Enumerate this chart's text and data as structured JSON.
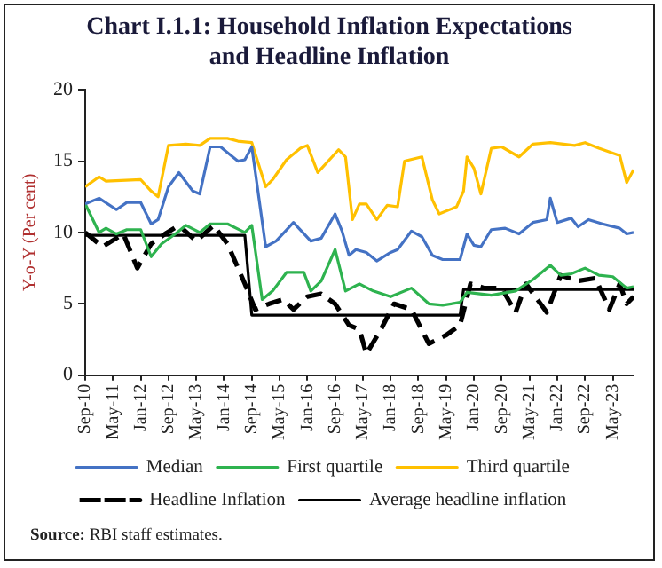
{
  "chart_data": {
    "type": "line",
    "title": "Chart I.1.1: Household Inflation Expectations and Headline Inflation",
    "ylabel": "Y-o-Y (Per cent)",
    "xlim": [
      "2010-09",
      "2023-11"
    ],
    "xticks": [
      {
        "value": "2010-09",
        "label": "Sep-10"
      },
      {
        "value": "2011-05",
        "label": "May-11"
      },
      {
        "value": "2012-01",
        "label": "Jan-12"
      },
      {
        "value": "2012-09",
        "label": "Sep-12"
      },
      {
        "value": "2013-05",
        "label": "May-13"
      },
      {
        "value": "2014-01",
        "label": "Jan-14"
      },
      {
        "value": "2014-09",
        "label": "Sep-14"
      },
      {
        "value": "2015-05",
        "label": "May-15"
      },
      {
        "value": "2016-01",
        "label": "Jan-16"
      },
      {
        "value": "2016-09",
        "label": "Sep-16"
      },
      {
        "value": "2017-05",
        "label": "May-17"
      },
      {
        "value": "2018-01",
        "label": "Jan-18"
      },
      {
        "value": "2018-09",
        "label": "Sep-18"
      },
      {
        "value": "2019-05",
        "label": "May-19"
      },
      {
        "value": "2020-01",
        "label": "Jan-20"
      },
      {
        "value": "2020-09",
        "label": "Sep-20"
      },
      {
        "value": "2021-05",
        "label": "May-21"
      },
      {
        "value": "2022-01",
        "label": "Jan-22"
      },
      {
        "value": "2022-09",
        "label": "Sep-22"
      },
      {
        "value": "2023-05",
        "label": "May-23"
      }
    ],
    "ylim": [
      0,
      20
    ],
    "yticks": [
      0,
      5,
      10,
      15,
      20
    ],
    "grid": false,
    "legend": "bottom",
    "marker": "none",
    "series": [
      {
        "name": "Median",
        "color": "#4472c4",
        "x": [
          "2010-09",
          "2011-01",
          "2011-06",
          "2011-09",
          "2012-01",
          "2012-04",
          "2012-06",
          "2012-09",
          "2012-12",
          "2013-04",
          "2013-06",
          "2013-09",
          "2013-12",
          "2014-05",
          "2014-07",
          "2014-09",
          "2015-01",
          "2015-04",
          "2015-09",
          "2016-02",
          "2016-05",
          "2016-09",
          "2016-11",
          "2017-01",
          "2017-03",
          "2017-06",
          "2017-09",
          "2018-01",
          "2018-03",
          "2018-07",
          "2018-10",
          "2019-01",
          "2019-04",
          "2019-09",
          "2019-11",
          "2020-01",
          "2020-03",
          "2020-06",
          "2020-10",
          "2021-02",
          "2021-06",
          "2021-10",
          "2021-11",
          "2022-01",
          "2022-05",
          "2022-07",
          "2022-10",
          "2023-02",
          "2023-07",
          "2023-09",
          "2023-11"
        ],
        "values": [
          12.0,
          12.4,
          11.6,
          12.1,
          12.1,
          10.6,
          10.9,
          13.2,
          14.2,
          12.9,
          12.7,
          16.0,
          16.0,
          15.0,
          15.1,
          16.0,
          9.0,
          9.4,
          10.7,
          9.4,
          9.6,
          11.3,
          10.1,
          8.4,
          8.8,
          8.6,
          8.0,
          8.6,
          8.8,
          10.1,
          9.7,
          8.4,
          8.1,
          8.1,
          9.9,
          9.1,
          9.0,
          10.2,
          10.3,
          9.9,
          10.7,
          10.9,
          12.4,
          10.7,
          11.0,
          10.4,
          10.9,
          10.6,
          10.3,
          9.9,
          10.0
        ]
      },
      {
        "name": "First quartile",
        "color": "#2eb34f",
        "x": [
          "2010-09",
          "2011-01",
          "2011-03",
          "2011-06",
          "2011-09",
          "2012-01",
          "2012-04",
          "2012-07",
          "2012-11",
          "2013-02",
          "2013-06",
          "2013-09",
          "2014-02",
          "2014-07",
          "2014-09",
          "2014-12",
          "2015-03",
          "2015-07",
          "2015-12",
          "2016-02",
          "2016-05",
          "2016-09",
          "2016-12",
          "2017-04",
          "2017-08",
          "2018-01",
          "2018-07",
          "2018-12",
          "2019-04",
          "2019-09",
          "2019-11",
          "2020-06",
          "2021-01",
          "2021-06",
          "2021-11",
          "2022-02",
          "2022-05",
          "2022-09",
          "2023-01",
          "2023-05",
          "2023-09",
          "2023-11"
        ],
        "values": [
          12.0,
          10.0,
          10.3,
          9.9,
          10.2,
          10.2,
          8.3,
          9.2,
          9.9,
          10.5,
          10.0,
          10.6,
          10.6,
          10.0,
          10.5,
          5.3,
          5.9,
          7.2,
          7.2,
          5.9,
          6.6,
          8.8,
          5.9,
          6.4,
          5.9,
          5.5,
          6.1,
          5.0,
          4.9,
          5.1,
          5.8,
          5.6,
          5.9,
          6.7,
          7.7,
          7.0,
          7.1,
          7.5,
          7.0,
          6.9,
          6.1,
          6.2
        ]
      },
      {
        "name": "Third quartile",
        "color": "#ffc000",
        "x": [
          "2010-09",
          "2011-01",
          "2011-03",
          "2012-01",
          "2012-04",
          "2012-06",
          "2012-09",
          "2013-02",
          "2013-06",
          "2013-09",
          "2014-02",
          "2014-05",
          "2014-09",
          "2015-01",
          "2015-03",
          "2015-07",
          "2015-11",
          "2016-01",
          "2016-04",
          "2016-10",
          "2016-12",
          "2017-02",
          "2017-04",
          "2017-06",
          "2017-09",
          "2017-12",
          "2018-03",
          "2018-05",
          "2018-10",
          "2019-01",
          "2019-03",
          "2019-08",
          "2019-10",
          "2019-11",
          "2020-01",
          "2020-03",
          "2020-06",
          "2020-09",
          "2021-02",
          "2021-06",
          "2021-11",
          "2022-06",
          "2022-09",
          "2023-01",
          "2023-07",
          "2023-09",
          "2023-11"
        ],
        "values": [
          13.2,
          13.9,
          13.6,
          13.7,
          12.9,
          12.5,
          16.1,
          16.2,
          16.1,
          16.6,
          16.6,
          16.4,
          16.3,
          13.2,
          13.7,
          15.1,
          15.9,
          16.1,
          14.2,
          15.8,
          15.3,
          10.9,
          12.0,
          12.0,
          10.9,
          11.9,
          11.8,
          15.0,
          15.3,
          12.3,
          11.3,
          11.8,
          12.9,
          15.3,
          14.5,
          12.7,
          15.9,
          16.0,
          15.3,
          16.2,
          16.3,
          16.1,
          16.3,
          15.9,
          15.4,
          13.5,
          14.4
        ]
      },
      {
        "name": "Headline Inflation",
        "color": "#000000",
        "line_style": "dashed",
        "x": [
          "2010-09",
          "2011-02",
          "2011-08",
          "2011-12",
          "2012-04",
          "2012-08",
          "2012-12",
          "2013-05",
          "2013-10",
          "2014-02",
          "2014-07",
          "2014-10",
          "2015-02",
          "2015-06",
          "2015-09",
          "2016-01",
          "2016-05",
          "2016-09",
          "2017-01",
          "2017-04",
          "2017-06",
          "2017-10",
          "2018-02",
          "2018-07",
          "2018-12",
          "2019-05",
          "2019-09",
          "2019-12",
          "2020-04",
          "2020-09",
          "2021-01",
          "2021-04",
          "2021-10",
          "2022-02",
          "2022-07",
          "2022-12",
          "2023-04",
          "2023-07",
          "2023-09",
          "2023-11"
        ],
        "values": [
          10.0,
          9.0,
          9.9,
          7.5,
          9.2,
          9.9,
          10.5,
          9.4,
          10.5,
          9.2,
          6.4,
          4.6,
          5.0,
          5.3,
          4.6,
          5.5,
          5.7,
          5.0,
          3.5,
          3.2,
          1.5,
          3.1,
          5.0,
          4.6,
          2.2,
          2.8,
          3.5,
          6.4,
          6.1,
          6.1,
          4.4,
          6.4,
          4.4,
          7.0,
          6.6,
          6.8,
          4.6,
          6.4,
          5.0,
          5.5
        ]
      },
      {
        "name": "Average headline inflation",
        "color": "#000000",
        "x": [
          "2010-09",
          "2014-07",
          "2014-09",
          "2019-09",
          "2019-10",
          "2023-11"
        ],
        "values": [
          9.8,
          9.8,
          4.2,
          4.2,
          6.0,
          6.0
        ]
      }
    ],
    "annotations": [
      "Source: RBI staff estimates."
    ]
  }
}
